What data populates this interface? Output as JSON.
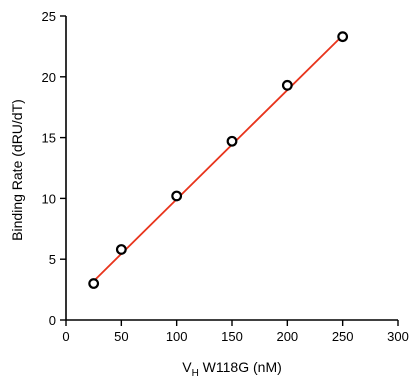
{
  "chart_data": {
    "type": "scatter",
    "title": "",
    "xlabel_main": "V",
    "xlabel_sub": "H",
    "xlabel_rest": " W118G (nM)",
    "ylabel": "Binding Rate (dRU/dT)",
    "xlim": [
      0,
      300
    ],
    "ylim": [
      0,
      25
    ],
    "xticks": [
      0,
      50,
      100,
      150,
      200,
      250,
      300
    ],
    "yticks": [
      0,
      5,
      10,
      15,
      20,
      25
    ],
    "grid": false,
    "series": [
      {
        "x": [
          25,
          50,
          100,
          150,
          200,
          250
        ],
        "y": [
          3.0,
          5.8,
          10.2,
          14.7,
          19.3,
          23.3
        ],
        "marker": "open-circle",
        "marker_color": "#000000"
      }
    ],
    "fit_line": {
      "x": [
        25,
        250
      ],
      "y": [
        3.2,
        23.4
      ],
      "color": "#e8341c"
    }
  }
}
